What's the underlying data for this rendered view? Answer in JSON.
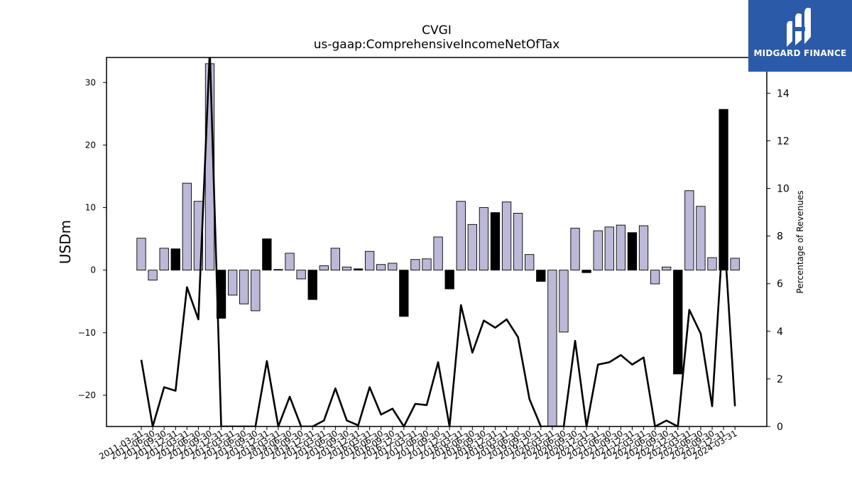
{
  "chart_data": {
    "type": "bar",
    "title": "CVGI",
    "subtitle": "us-gaap:ComprehensiveIncomeNetOfTax",
    "ylabel": "USDm",
    "y2label": "Percentage of Revenues",
    "ylim": [
      -25,
      34
    ],
    "y2lim": [
      0,
      15.5
    ],
    "yticks": [
      -20,
      -10,
      0,
      10,
      20,
      30
    ],
    "y2ticks": [
      0,
      2,
      4,
      6,
      8,
      10,
      12,
      14
    ],
    "bar_colors": {
      "positive": "#bcb8d8",
      "negative": "#bcb8d8",
      "highlight": "#000000"
    },
    "line_color": "#000000",
    "categories": [
      "2011-03-31",
      "2011-06-30",
      "2011-09-30",
      "2011-12-31",
      "2012-03-31",
      "2012-06-30",
      "2012-09-30",
      "2012-12-31",
      "2013-03-31",
      "2013-06-30",
      "2013-09-30",
      "2013-12-31",
      "2014-03-31",
      "2014-06-30",
      "2014-09-30",
      "2014-12-31",
      "2015-03-31",
      "2015-06-30",
      "2015-09-30",
      "2015-12-31",
      "2016-03-31",
      "2016-06-30",
      "2016-09-30",
      "2016-12-31",
      "2017-03-31",
      "2017-06-30",
      "2017-09-30",
      "2017-12-31",
      "2018-03-31",
      "2018-06-30",
      "2018-09-30",
      "2018-12-31",
      "2019-03-31",
      "2019-06-30",
      "2019-09-30",
      "2019-12-31",
      "2020-03-31",
      "2020-06-30",
      "2020-09-30",
      "2020-12-31",
      "2021-03-31",
      "2021-06-30",
      "2021-09-30",
      "2021-12-31",
      "2022-03-31",
      "2022-06-30",
      "2022-09-30",
      "2022-12-31",
      "2023-03-31",
      "2023-06-30",
      "2023-09-30",
      "2023-12-31",
      "2024-03-31"
    ],
    "series": [
      {
        "kind": "bar",
        "values": [
          5.1,
          -1.6,
          3.5,
          3.4,
          13.9,
          11.0,
          33.0,
          -7.7,
          -4.0,
          -5.4,
          -6.5,
          5.0,
          0.1,
          2.7,
          -1.4,
          -4.7,
          0.7,
          3.5,
          0.5,
          0.2,
          3.0,
          0.9,
          1.1,
          -7.4,
          1.7,
          1.8,
          5.3,
          -3.0,
          11.0,
          7.3,
          10.0,
          9.2,
          10.9,
          9.1,
          2.5,
          -1.8,
          -25,
          -9.9,
          6.7,
          -0.4,
          6.3,
          6.9,
          7.2,
          6.0,
          7.1,
          -2.2,
          0.5,
          -16.6,
          12.7,
          10.2,
          2.0,
          25.7,
          1.9
        ],
        "highlight": [
          false,
          false,
          false,
          true,
          false,
          false,
          false,
          true,
          false,
          false,
          false,
          true,
          true,
          false,
          false,
          true,
          false,
          false,
          false,
          true,
          false,
          false,
          false,
          true,
          false,
          false,
          false,
          true,
          false,
          false,
          false,
          true,
          false,
          false,
          false,
          true,
          false,
          false,
          false,
          true,
          false,
          false,
          false,
          true,
          false,
          false,
          false,
          true,
          false,
          false,
          false,
          true,
          false
        ]
      },
      {
        "kind": "line",
        "axis": "y2",
        "values": [
          2.8,
          0,
          1.65,
          1.5,
          5.85,
          4.5,
          15.8,
          0,
          0,
          0,
          0,
          2.75,
          0,
          1.25,
          0,
          0,
          0.25,
          1.6,
          0.25,
          0.05,
          1.65,
          0.5,
          0.75,
          0,
          0.95,
          0.9,
          2.7,
          0,
          5.1,
          3.1,
          4.45,
          4.15,
          4.5,
          3.75,
          1.15,
          0,
          0,
          0,
          3.6,
          0,
          2.6,
          2.7,
          3.0,
          2.6,
          2.9,
          0,
          0.25,
          0,
          4.9,
          3.9,
          0.85,
          8.5,
          0.85
        ]
      }
    ]
  },
  "logo": {
    "text": "MIDGARD FINANCE"
  }
}
